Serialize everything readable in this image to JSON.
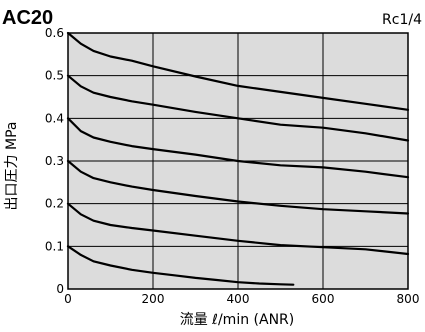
{
  "chart_data": {
    "type": "line",
    "title": "AC20",
    "subtitle": "Rc1/4",
    "xlabel": "流量 ℓ/min (ANR)",
    "ylabel": "出口圧力 MPa",
    "xlim": [
      0,
      800
    ],
    "ylim": [
      0,
      0.6
    ],
    "xticks": [
      0,
      200,
      400,
      600,
      800
    ],
    "yticks": [
      0,
      0.1,
      0.2,
      0.3,
      0.4,
      0.5,
      0.6
    ],
    "xtick_labels": [
      "0",
      "200",
      "400",
      "600",
      "800"
    ],
    "ytick_labels": [
      "0",
      "0.1",
      "0.2",
      "0.3",
      "0.4",
      "0.5",
      "0.6"
    ],
    "grid": true,
    "background": "#dcdcdc",
    "line_color": "#000000",
    "series": [
      {
        "x": [
          0,
          30,
          60,
          100,
          150,
          200,
          250,
          300,
          350,
          400,
          450,
          500,
          530
        ],
        "y": [
          0.1,
          0.08,
          0.065,
          0.055,
          0.045,
          0.038,
          0.032,
          0.026,
          0.021,
          0.016,
          0.013,
          0.011,
          0.01
        ]
      },
      {
        "x": [
          0,
          30,
          60,
          100,
          150,
          200,
          300,
          400,
          500,
          600,
          700,
          800
        ],
        "y": [
          0.2,
          0.175,
          0.16,
          0.15,
          0.143,
          0.137,
          0.125,
          0.113,
          0.103,
          0.098,
          0.093,
          0.082
        ]
      },
      {
        "x": [
          0,
          30,
          60,
          100,
          150,
          200,
          300,
          400,
          500,
          600,
          700,
          800
        ],
        "y": [
          0.3,
          0.275,
          0.26,
          0.25,
          0.24,
          0.232,
          0.218,
          0.205,
          0.195,
          0.187,
          0.182,
          0.177
        ]
      },
      {
        "x": [
          0,
          30,
          60,
          100,
          150,
          200,
          300,
          400,
          500,
          600,
          700,
          800
        ],
        "y": [
          0.4,
          0.37,
          0.355,
          0.345,
          0.335,
          0.328,
          0.315,
          0.3,
          0.29,
          0.285,
          0.275,
          0.262
        ]
      },
      {
        "x": [
          0,
          30,
          60,
          100,
          150,
          200,
          300,
          400,
          500,
          600,
          700,
          800
        ],
        "y": [
          0.5,
          0.475,
          0.46,
          0.45,
          0.44,
          0.432,
          0.415,
          0.4,
          0.385,
          0.378,
          0.365,
          0.348
        ]
      },
      {
        "x": [
          0,
          30,
          60,
          100,
          150,
          200,
          300,
          400,
          500,
          600,
          700,
          800
        ],
        "y": [
          0.6,
          0.575,
          0.558,
          0.545,
          0.535,
          0.522,
          0.498,
          0.476,
          0.462,
          0.448,
          0.434,
          0.42
        ]
      }
    ]
  }
}
